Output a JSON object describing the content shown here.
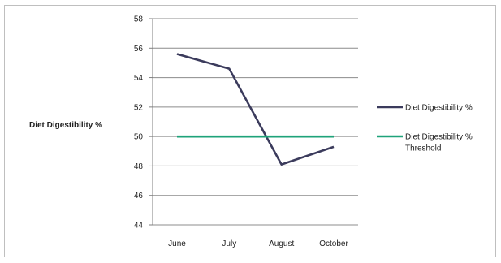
{
  "chart_data": {
    "type": "line",
    "title": "",
    "xlabel": "",
    "ylabel": "Diet Digestibility %",
    "categories": [
      "June",
      "July",
      "August",
      "October"
    ],
    "ylim": [
      44,
      58
    ],
    "yticks": [
      44,
      46,
      48,
      50,
      52,
      54,
      56,
      58
    ],
    "grid": "horizontal",
    "legend_position": "right",
    "series": [
      {
        "name": "Diet Digestibility %",
        "values": [
          55.6,
          54.6,
          48.1,
          49.3
        ],
        "color": "#3b3b5c"
      },
      {
        "name": "Diet Digestibility % Threshold",
        "values": [
          50,
          50,
          50,
          50
        ],
        "color": "#1fa37a"
      }
    ],
    "legend": [
      {
        "lines": [
          "Diet Digestibility %"
        ]
      },
      {
        "lines": [
          "Diet Digestibility %",
          "Threshold"
        ]
      }
    ]
  }
}
